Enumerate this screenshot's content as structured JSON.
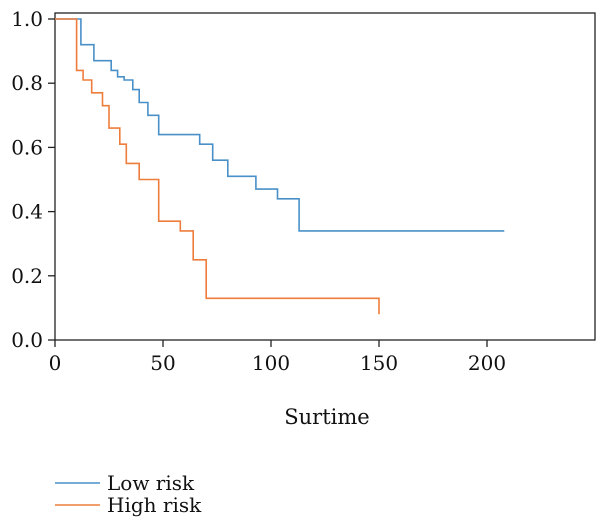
{
  "chart_data": {
    "type": "line",
    "title": "",
    "xlabel": "Surtime",
    "ylabel": "",
    "xlim": [
      0,
      250
    ],
    "ylim": [
      0,
      1.05
    ],
    "xticks": [
      "0",
      "50",
      "100",
      "150",
      "200"
    ],
    "xtick_values": [
      0,
      50,
      100,
      150,
      200
    ],
    "yticks": [
      "0.0",
      "0.2",
      "0.4",
      "0.6",
      "0.8",
      "1.0"
    ],
    "ytick_values": [
      0,
      0.2,
      0.4,
      0.6,
      0.8,
      1.0
    ],
    "grid": false,
    "legend_position": "bottom-left",
    "step": true,
    "series": [
      {
        "name": "Low risk",
        "color": "#4a90c8",
        "x": [
          0,
          12,
          18,
          26,
          29,
          32,
          36,
          39,
          43,
          48,
          52,
          67,
          73,
          80,
          93,
          103,
          113,
          208
        ],
        "y": [
          1.0,
          0.92,
          0.87,
          0.84,
          0.82,
          0.81,
          0.78,
          0.74,
          0.7,
          0.64,
          0.64,
          0.61,
          0.56,
          0.51,
          0.47,
          0.44,
          0.34,
          0.34
        ]
      },
      {
        "name": "High risk",
        "color": "#ee7d3c",
        "x": [
          0,
          10,
          13,
          17,
          22,
          25,
          30,
          33,
          39,
          48,
          58,
          64,
          70,
          150,
          150
        ],
        "y": [
          1.0,
          0.84,
          0.81,
          0.77,
          0.73,
          0.66,
          0.61,
          0.55,
          0.5,
          0.37,
          0.34,
          0.25,
          0.13,
          0.13,
          0.08
        ]
      }
    ]
  }
}
